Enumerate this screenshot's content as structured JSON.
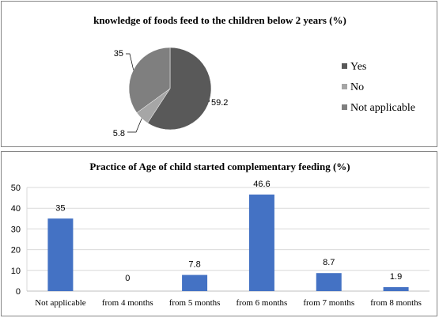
{
  "chart_data": [
    {
      "type": "pie",
      "title": "knowledge of foods feed to the children below 2 years (%)",
      "slices": [
        {
          "label": "Yes",
          "value": 59.2,
          "display": "59.2",
          "color": "#595959"
        },
        {
          "label": "No",
          "value": 5.8,
          "display": "5.8",
          "color": "#a6a6a6"
        },
        {
          "label": "Not applicable",
          "value": 35,
          "display": "35",
          "color": "#7f7f7f"
        }
      ],
      "legend_position": "right"
    },
    {
      "type": "bar",
      "title": "Practice of Age of child started complementary  feeding (%)",
      "categories": [
        "Not applicable",
        "from 4 months",
        "from 5 months",
        "from 6 months",
        "from 7 months",
        "from 8 months"
      ],
      "values": [
        35,
        0,
        7.8,
        46.6,
        8.7,
        1.9
      ],
      "value_labels": [
        "35",
        "0",
        "7.8",
        "46.6",
        "8.7",
        "1.9"
      ],
      "ylim": [
        0,
        50
      ],
      "yticks": [
        "0",
        "10",
        "20",
        "30",
        "40",
        "50"
      ],
      "bar_color": "#4472c4",
      "grid": true
    }
  ]
}
